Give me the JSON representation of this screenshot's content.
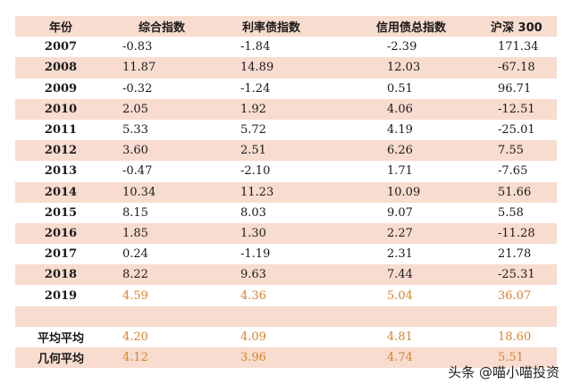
{
  "header": [
    "年份",
    "综合指数",
    "利率债指数",
    "信用债总指数",
    "沪深 300"
  ],
  "rows": [
    {
      "year": "2007",
      "v": [
        "-0.83",
        "-1.84",
        "-2.39",
        "171.34"
      ]
    },
    {
      "year": "2008",
      "v": [
        "11.87",
        "14.89",
        "12.03",
        "-67.18"
      ]
    },
    {
      "year": "2009",
      "v": [
        "-0.32",
        "-1.24",
        "0.51",
        "96.71"
      ]
    },
    {
      "year": "2010",
      "v": [
        "2.05",
        "1.92",
        "4.06",
        "-12.51"
      ]
    },
    {
      "year": "2011",
      "v": [
        "5.33",
        "5.72",
        "4.19",
        "-25.01"
      ]
    },
    {
      "year": "2012",
      "v": [
        "3.60",
        "2.51",
        "6.26",
        "7.55"
      ]
    },
    {
      "year": "2013",
      "v": [
        "-0.47",
        "-2.10",
        "1.71",
        "-7.65"
      ]
    },
    {
      "year": "2014",
      "v": [
        "10.34",
        "11.23",
        "10.09",
        "51.66"
      ]
    },
    {
      "year": "2015",
      "v": [
        "8.15",
        "8.03",
        "9.07",
        "5.58"
      ]
    },
    {
      "year": "2016",
      "v": [
        "1.85",
        "1.30",
        "2.27",
        "-11.28"
      ]
    },
    {
      "year": "2017",
      "v": [
        "0.24",
        "-1.19",
        "2.31",
        "21.78"
      ]
    },
    {
      "year": "2018",
      "v": [
        "8.22",
        "9.63",
        "7.44",
        "-25.31"
      ]
    },
    {
      "year": "2019",
      "v": [
        "4.59",
        "4.36",
        "5.04",
        "36.07"
      ]
    }
  ],
  "summary": [
    {
      "label": "平均平均",
      "v": [
        "4.20",
        "4.09",
        "4.81",
        "18.60"
      ]
    },
    {
      "label": "几何平均",
      "v": [
        "4.12",
        "3.96",
        "4.74",
        "5.51"
      ]
    }
  ],
  "watermark": "头条 @喵小喵投资",
  "colors": {
    "shade": "#f8dccf",
    "highlight": "#d9822b"
  }
}
